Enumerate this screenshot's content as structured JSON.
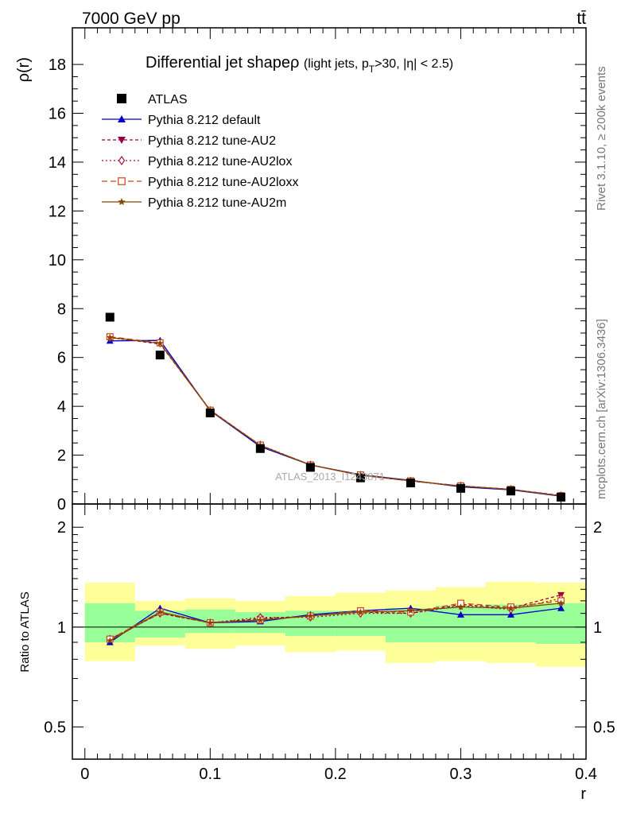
{
  "header": {
    "energy_label": "7000 GeV pp",
    "process_label": "tt̄",
    "side_rivet": "Rivet 3.1.10, ≥ 200k events",
    "side_mcplots": "mcplots.cern.ch [arXiv:1306.3436]",
    "watermark": "ATLAS_2013_I1243871"
  },
  "chart_data": [
    {
      "type": "line",
      "panel": "main",
      "title": "Differential jet shapeρ",
      "title_cut": "(light jets, p",
      "title_cut_sub": "T",
      "title_cut_rest": ">30, |η| < 2.5)",
      "ylabel": "ρ(r)",
      "xlim": [
        -0.01,
        0.4
      ],
      "ylim": [
        0,
        19.5
      ],
      "yticks": [
        0,
        2,
        4,
        6,
        8,
        10,
        12,
        14,
        16,
        18
      ],
      "ytick_labels": [
        "0",
        "2",
        "4",
        "6",
        "8",
        "10",
        "12",
        "14",
        "16",
        "18"
      ],
      "bin_edges": [
        0,
        0.04,
        0.08,
        0.12,
        0.16,
        0.2,
        0.24,
        0.28,
        0.32,
        0.36,
        0.4
      ],
      "x": [
        0.02,
        0.06,
        0.1,
        0.14,
        0.18,
        0.22,
        0.26,
        0.3,
        0.34,
        0.38
      ],
      "legend_position": "top-left",
      "data": {
        "name": "ATLAS",
        "color": "#000000",
        "values": [
          7.65,
          6.1,
          3.73,
          2.27,
          1.5,
          1.07,
          0.86,
          0.64,
          0.53,
          0.28
        ]
      },
      "series": [
        {
          "name": "Pythia 8.212 default",
          "color": "#0000cc",
          "dash": "",
          "marker": "triangle-up",
          "values": [
            6.68,
            6.7,
            3.82,
            2.35,
            1.6,
            1.2,
            0.97,
            0.7,
            0.58,
            0.32
          ]
        },
        {
          "name": "Pythia 8.212 tune-AU2",
          "color": "#990044",
          "dash": "4,3",
          "marker": "triangle-down",
          "values": [
            6.82,
            6.55,
            3.85,
            2.4,
            1.6,
            1.18,
            0.94,
            0.74,
            0.6,
            0.35
          ]
        },
        {
          "name": "Pythia 8.212 tune-AU2lox",
          "color": "#aa1133",
          "dash": "2,3",
          "marker": "diamond",
          "values": [
            6.8,
            6.6,
            3.83,
            2.42,
            1.6,
            1.18,
            0.94,
            0.74,
            0.6,
            0.34
          ]
        },
        {
          "name": "Pythia 8.212 tune-AU2loxx",
          "color": "#cc4411",
          "dash": "7,4",
          "marker": "square",
          "values": [
            6.85,
            6.6,
            3.84,
            2.41,
            1.6,
            1.19,
            0.95,
            0.74,
            0.6,
            0.34
          ]
        },
        {
          "name": "Pythia 8.212 tune-AU2m",
          "color": "#884400",
          "dash": "",
          "marker": "star",
          "values": [
            6.82,
            6.58,
            3.83,
            2.4,
            1.6,
            1.18,
            0.95,
            0.73,
            0.6,
            0.33
          ]
        }
      ]
    },
    {
      "type": "line",
      "panel": "ratio",
      "ylabel": "Ratio to ATLAS",
      "xlabel": "r",
      "xlim": [
        -0.01,
        0.4
      ],
      "ylim": [
        0.4,
        2.35
      ],
      "log_y": true,
      "yticks": [
        0.5,
        1,
        2
      ],
      "ytick_labels": [
        "0.5",
        "1",
        "2"
      ],
      "xticks": [
        0,
        0.1,
        0.2,
        0.3,
        0.4
      ],
      "xtick_labels": [
        "0",
        "0.1",
        "0.2",
        "0.3",
        "0.4"
      ],
      "band_inner": {
        "color": "#99ff99",
        "lo": [
          0.9,
          0.93,
          0.96,
          0.96,
          0.94,
          0.94,
          0.9,
          0.9,
          0.9,
          0.89
        ],
        "hi": [
          1.18,
          1.12,
          1.13,
          1.11,
          1.12,
          1.12,
          1.14,
          1.16,
          1.17,
          1.18
        ]
      },
      "band_outer": {
        "color": "#ffff99",
        "lo": [
          0.79,
          0.88,
          0.86,
          0.88,
          0.84,
          0.85,
          0.78,
          0.79,
          0.78,
          0.76
        ],
        "hi": [
          1.36,
          1.2,
          1.22,
          1.2,
          1.24,
          1.27,
          1.29,
          1.32,
          1.37,
          1.36
        ]
      },
      "x": [
        0.02,
        0.06,
        0.1,
        0.14,
        0.18,
        0.22,
        0.26,
        0.3,
        0.34,
        0.38
      ],
      "series": [
        {
          "name": "Pythia 8.212 default",
          "color": "#0000cc",
          "dash": "",
          "marker": "triangle-up",
          "values": [
            0.9,
            1.14,
            1.03,
            1.04,
            1.09,
            1.12,
            1.14,
            1.09,
            1.09,
            1.14
          ]
        },
        {
          "name": "Pythia 8.212 tune-AU2",
          "color": "#990044",
          "dash": "4,3",
          "marker": "triangle-down",
          "values": [
            0.92,
            1.1,
            1.03,
            1.06,
            1.08,
            1.11,
            1.1,
            1.17,
            1.14,
            1.25
          ]
        },
        {
          "name": "Pythia 8.212 tune-AU2lox",
          "color": "#aa1133",
          "dash": "2,3",
          "marker": "diamond",
          "values": [
            0.92,
            1.1,
            1.03,
            1.07,
            1.07,
            1.1,
            1.1,
            1.16,
            1.13,
            1.22
          ]
        },
        {
          "name": "Pythia 8.212 tune-AU2loxx",
          "color": "#cc4411",
          "dash": "7,4",
          "marker": "square",
          "values": [
            0.92,
            1.11,
            1.03,
            1.05,
            1.08,
            1.12,
            1.11,
            1.18,
            1.15,
            1.2
          ]
        },
        {
          "name": "Pythia 8.212 tune-AU2m",
          "color": "#884400",
          "dash": "",
          "marker": "star",
          "values": [
            0.91,
            1.11,
            1.03,
            1.05,
            1.08,
            1.11,
            1.12,
            1.15,
            1.14,
            1.18
          ]
        }
      ]
    }
  ]
}
